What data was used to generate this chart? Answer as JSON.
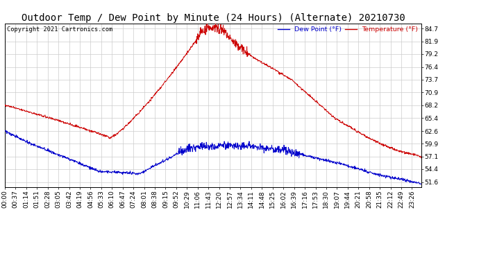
{
  "title": "Outdoor Temp / Dew Point by Minute (24 Hours) (Alternate) 20210730",
  "copyright": "Copyright 2021 Cartronics.com",
  "legend_dew": "Dew Point (°F)",
  "legend_temp": "Temperature (°F)",
  "yticks": [
    51.6,
    54.4,
    57.1,
    59.9,
    62.6,
    65.4,
    68.2,
    70.9,
    73.7,
    76.4,
    79.2,
    81.9,
    84.7
  ],
  "ylim": [
    50.5,
    85.8
  ],
  "temp_color": "#cc0000",
  "dew_color": "#0000cc",
  "bg_color": "#ffffff",
  "grid_color": "#cccccc",
  "title_fontsize": 10,
  "tick_fontsize": 6.5,
  "minutes_per_day": 1440,
  "tick_step": 37
}
